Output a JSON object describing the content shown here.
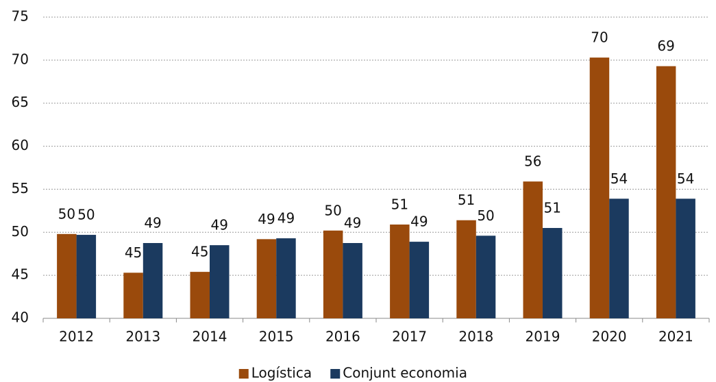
{
  "chart_data": {
    "type": "bar",
    "categories": [
      "2012",
      "2013",
      "2014",
      "2015",
      "2016",
      "2017",
      "2018",
      "2019",
      "2020",
      "2021"
    ],
    "series": [
      {
        "name": "Logística",
        "color": "#9a4a0c",
        "values": [
          49.8,
          45.3,
          45.4,
          49.2,
          50.2,
          50.9,
          51.4,
          55.9,
          70.3,
          69.3
        ],
        "value_labels": [
          "50",
          "45",
          "45",
          "49",
          "50",
          "51",
          "51",
          "56",
          "70",
          "69"
        ]
      },
      {
        "name": "Conjunt economia",
        "color": "#1b3a5f",
        "values": [
          49.7,
          48.75,
          48.5,
          49.3,
          48.75,
          48.9,
          49.6,
          50.5,
          53.9,
          53.9
        ],
        "value_labels": [
          "50",
          "49",
          "49",
          "49",
          "49",
          "49",
          "50",
          "51",
          "54",
          "54"
        ]
      }
    ],
    "ylim": [
      40,
      75
    ],
    "yticks": [
      40,
      45,
      50,
      55,
      60,
      65,
      70,
      75
    ],
    "grid": true,
    "legend": "bottom"
  }
}
